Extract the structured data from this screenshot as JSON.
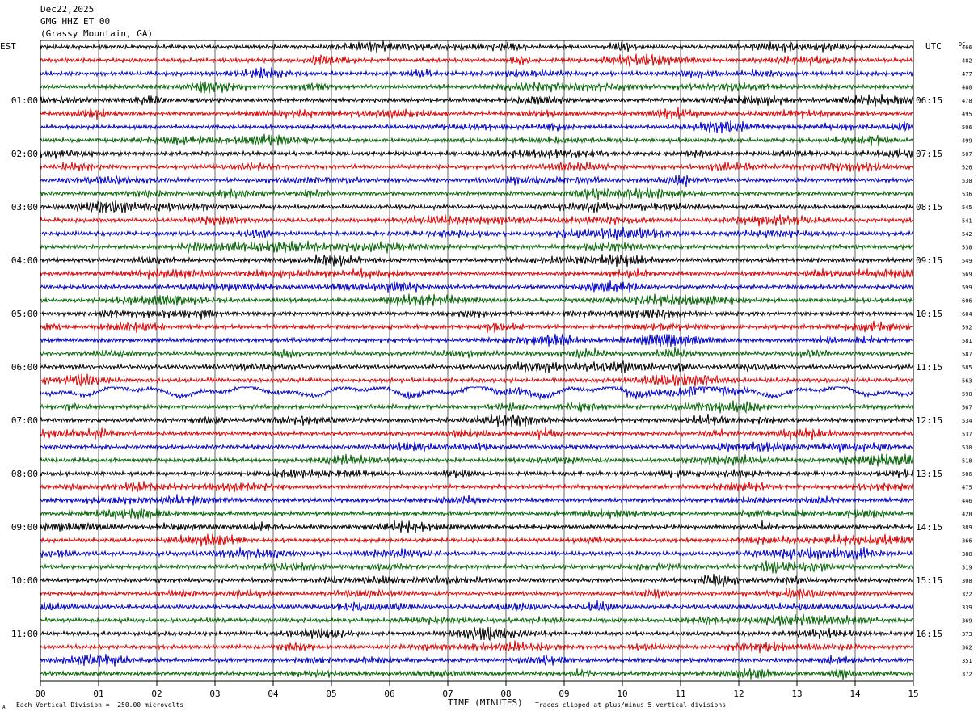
{
  "header": {
    "date": "Dec22,2025",
    "station": "GMG HHZ ET 00",
    "location": "(Grassy Mountain, GA)"
  },
  "left_axis_label": "EST",
  "right_axis_label": "UTC",
  "dc_label": "DC",
  "footer": {
    "scale_mark": "A",
    "scale_note": "Each Vertical Division =  250.00 microvolts",
    "xlabel": "TIME (MINUTES)",
    "clip_note": "Traces clipped at plus/minus 5 vertical divisions"
  },
  "colors": {
    "trace_cycle": [
      "#000000",
      "#dd0000",
      "#0000cc",
      "#006400"
    ],
    "grid": "#000000",
    "background": "#ffffff"
  },
  "chart_data": {
    "type": "line",
    "title": "",
    "xlabel": "TIME (MINUTES)",
    "xlim": [
      0,
      15
    ],
    "x_ticks": [
      "00",
      "01",
      "02",
      "03",
      "04",
      "05",
      "06",
      "07",
      "08",
      "09",
      "10",
      "11",
      "12",
      "13",
      "14",
      "15"
    ],
    "rows_per_hour": 4,
    "minutes_per_row": 15,
    "est_hour_labels": [
      "",
      "01:00",
      "02:00",
      "03:00",
      "04:00",
      "05:00",
      "06:00",
      "07:00",
      "08:00",
      "09:00",
      "10:00",
      "11:00"
    ],
    "utc_hour_labels": [
      "",
      "06:15",
      "07:15",
      "08:15",
      "09:15",
      "10:15",
      "11:15",
      "12:15",
      "13:15",
      "14:15",
      "15:15",
      "16:15"
    ],
    "dc_offsets": [
      466,
      482,
      477,
      480,
      478,
      495,
      506,
      499,
      507,
      526,
      530,
      536,
      545,
      541,
      542,
      538,
      549,
      569,
      599,
      606,
      604,
      592,
      581,
      587,
      585,
      563,
      590,
      567,
      534,
      537,
      530,
      518,
      506,
      475,
      446,
      428,
      389,
      366,
      388,
      319,
      308,
      322,
      339,
      369,
      373,
      362,
      351,
      372
    ],
    "wander_row": 26
  }
}
